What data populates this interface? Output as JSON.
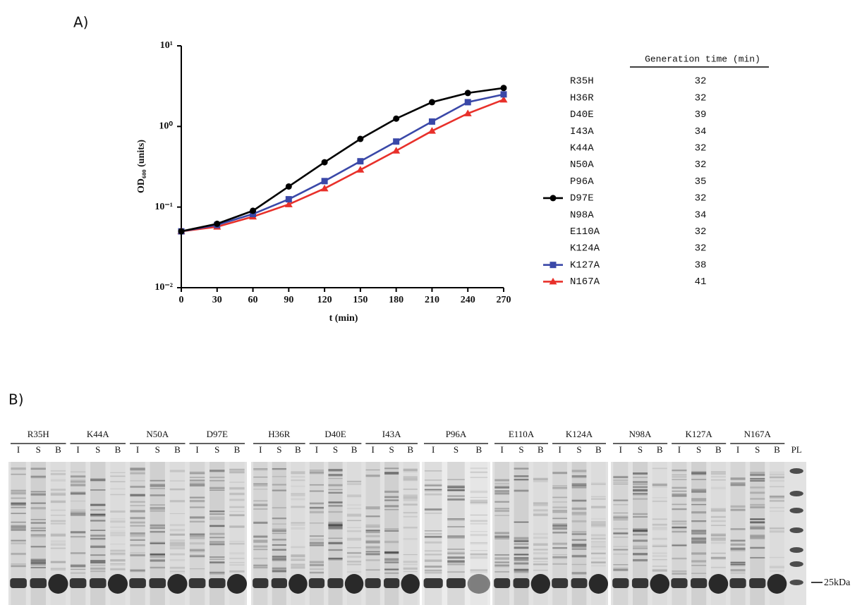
{
  "panel_a_label": "A)",
  "panel_b_label": "B)",
  "chart_data": {
    "type": "line",
    "x_label": "t (min)",
    "y_label": "OD₆₀₀ (units)",
    "x": [
      0,
      30,
      60,
      90,
      120,
      150,
      180,
      210,
      240,
      270
    ],
    "xlim": [
      0,
      270
    ],
    "xticks": [
      0,
      30,
      60,
      90,
      120,
      150,
      180,
      210,
      240,
      270
    ],
    "ylim": [
      0.01,
      10
    ],
    "log_y": true,
    "yticks": [
      {
        "value": 0.01,
        "label": "10⁻²"
      },
      {
        "value": 0.1,
        "label": "10⁻¹"
      },
      {
        "value": 1,
        "label": "10⁰"
      },
      {
        "value": 10,
        "label": "10¹"
      }
    ],
    "series": [
      {
        "name": "D97E",
        "color": "#000000",
        "marker": "circle",
        "values": [
          0.05,
          0.062,
          0.09,
          0.18,
          0.36,
          0.7,
          1.25,
          2.0,
          2.6,
          3.0
        ]
      },
      {
        "name": "K127A",
        "color": "#3a48a8",
        "marker": "square",
        "values": [
          0.05,
          0.06,
          0.082,
          0.125,
          0.21,
          0.37,
          0.65,
          1.15,
          2.0,
          2.5
        ]
      },
      {
        "name": "N167A",
        "color": "#e8302a",
        "marker": "triangle",
        "values": [
          0.05,
          0.057,
          0.076,
          0.108,
          0.17,
          0.29,
          0.5,
          0.88,
          1.45,
          2.15
        ]
      }
    ]
  },
  "generation_table": {
    "header": "Generation time (min)",
    "rows": [
      {
        "strain": "R35H",
        "time": 32
      },
      {
        "strain": "H36R",
        "time": 32
      },
      {
        "strain": "D40E",
        "time": 39
      },
      {
        "strain": "I43A",
        "time": 34
      },
      {
        "strain": "K44A",
        "time": 32
      },
      {
        "strain": "N50A",
        "time": 32
      },
      {
        "strain": "P96A",
        "time": 35
      },
      {
        "strain": "D97E",
        "time": 32
      },
      {
        "strain": "N98A",
        "time": 34
      },
      {
        "strain": "E110A",
        "time": 32
      },
      {
        "strain": "K124A",
        "time": 32
      },
      {
        "strain": "K127A",
        "time": 38
      },
      {
        "strain": "N167A",
        "time": 41
      }
    ]
  },
  "gel": {
    "panels": [
      [
        {
          "name": "R35H",
          "lanes": [
            "I",
            "S",
            "B"
          ]
        },
        {
          "name": "K44A",
          "lanes": [
            "I",
            "S",
            "B"
          ]
        },
        {
          "name": "N50A",
          "lanes": [
            "I",
            "S",
            "B"
          ]
        },
        {
          "name": "D97E",
          "lanes": [
            "I",
            "S",
            "B"
          ]
        }
      ],
      [
        {
          "name": "H36R",
          "lanes": [
            "I",
            "S",
            "B"
          ]
        },
        {
          "name": "D40E",
          "lanes": [
            "I",
            "S",
            "B"
          ]
        },
        {
          "name": "I43A",
          "lanes": [
            "I",
            "S",
            "B"
          ]
        }
      ],
      [
        {
          "name": "P96A",
          "lanes": [
            "I",
            "S",
            "B"
          ]
        }
      ],
      [
        {
          "name": "E110A",
          "lanes": [
            "I",
            "S",
            "B"
          ]
        },
        {
          "name": "K124A",
          "lanes": [
            "I",
            "S",
            "B"
          ]
        }
      ],
      [
        {
          "name": "N98A",
          "lanes": [
            "I",
            "S",
            "B"
          ]
        },
        {
          "name": "K127A",
          "lanes": [
            "I",
            "S",
            "B"
          ]
        },
        {
          "name": "N167A",
          "lanes": [
            "I",
            "S",
            "B"
          ]
        }
      ]
    ],
    "ladder": "PL",
    "marker": "25kDa"
  }
}
